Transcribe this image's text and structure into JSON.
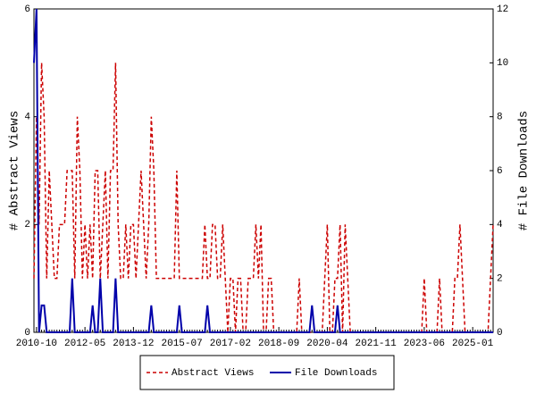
{
  "chart_data": {
    "type": "line",
    "ylabel": "# Abstract Views",
    "y2label": "# File Downloads",
    "categories": [
      null,
      "2010-10",
      null,
      null,
      null,
      null,
      null,
      null,
      null,
      null,
      null,
      null,
      null,
      null,
      null,
      null,
      null,
      null,
      null,
      null,
      "2012-05",
      null,
      null,
      null,
      null,
      null,
      null,
      null,
      null,
      null,
      null,
      null,
      null,
      null,
      null,
      null,
      null,
      null,
      null,
      "2013-12",
      null,
      null,
      null,
      null,
      null,
      null,
      null,
      null,
      null,
      null,
      null,
      null,
      null,
      null,
      null,
      null,
      null,
      null,
      "2015-07",
      null,
      null,
      null,
      null,
      null,
      null,
      null,
      null,
      null,
      null,
      null,
      null,
      null,
      null,
      null,
      null,
      null,
      null,
      "2017-02",
      null,
      null,
      null,
      null,
      null,
      null,
      null,
      null,
      null,
      null,
      null,
      null,
      null,
      null,
      null,
      null,
      null,
      null,
      "2018-09",
      null,
      null,
      null,
      null,
      null,
      null,
      null,
      null,
      null,
      null,
      null,
      null,
      null,
      null,
      null,
      null,
      null,
      null,
      "2020-04",
      null,
      null,
      null,
      null,
      null,
      null,
      null,
      null,
      null,
      null,
      null,
      null,
      null,
      null,
      null,
      null,
      null,
      null,
      "2021-11",
      null,
      null,
      null,
      null,
      null,
      null,
      null,
      null,
      null,
      null,
      null,
      null,
      null,
      null,
      null,
      null,
      null,
      null,
      "2023-06",
      null,
      null,
      null,
      null,
      null,
      null,
      null,
      null,
      null,
      null,
      null,
      null,
      null,
      null,
      null,
      null,
      null,
      null,
      "2025-01",
      null,
      null,
      null,
      null,
      null,
      null,
      null,
      null
    ],
    "series": [
      {
        "name": "Abstract Views",
        "color": "#cc0000",
        "dash": true,
        "values": [
          1,
          4,
          2,
          5,
          4,
          1,
          3,
          2,
          1,
          1,
          2,
          2,
          2,
          3,
          3,
          3,
          1,
          4,
          3,
          1,
          2,
          1,
          2,
          1,
          3,
          3,
          1,
          2,
          3,
          1,
          3,
          3,
          5,
          2,
          1,
          1,
          2,
          1,
          2,
          2,
          1,
          2,
          3,
          2,
          1,
          2,
          4,
          3,
          1,
          1,
          1,
          1,
          1,
          1,
          1,
          1,
          3,
          1,
          1,
          1,
          1,
          1,
          1,
          1,
          1,
          1,
          1,
          2,
          1,
          1,
          2,
          2,
          1,
          1,
          2,
          1,
          0,
          1,
          1,
          0,
          1,
          1,
          0,
          0,
          1,
          1,
          1,
          2,
          1,
          2,
          0,
          0,
          1,
          1,
          0,
          0,
          0,
          0,
          0,
          0,
          0,
          0,
          0,
          0,
          1,
          0,
          0,
          0,
          0,
          0,
          0,
          0,
          0,
          0,
          1,
          2,
          0,
          0,
          1,
          1,
          2,
          0,
          2,
          1,
          0,
          0,
          0,
          0,
          0,
          0,
          0,
          0,
          0,
          0,
          0,
          0,
          0,
          0,
          0,
          0,
          0,
          0,
          0,
          0,
          0,
          0,
          0,
          0,
          0,
          0,
          0,
          0,
          0,
          1,
          0,
          0,
          0,
          0,
          0,
          1,
          0,
          0,
          0,
          0,
          0,
          1,
          1,
          2,
          1,
          0,
          0,
          0,
          0,
          0,
          0,
          0,
          0,
          0,
          0,
          1,
          2
        ]
      },
      {
        "name": "File Downloads",
        "color": "#0000aa",
        "dash": false,
        "axis": "y2",
        "values": [
          10,
          12,
          0,
          1,
          1,
          0,
          0,
          0,
          0,
          0,
          0,
          0,
          0,
          0,
          0,
          2,
          0,
          0,
          0,
          0,
          0,
          0,
          0,
          1,
          0,
          0,
          2,
          0,
          0,
          0,
          0,
          0,
          2,
          0,
          0,
          0,
          0,
          0,
          0,
          0,
          0,
          0,
          0,
          0,
          0,
          0,
          1,
          0,
          0,
          0,
          0,
          0,
          0,
          0,
          0,
          0,
          0,
          1,
          0,
          0,
          0,
          0,
          0,
          0,
          0,
          0,
          0,
          0,
          1,
          0,
          0,
          0,
          0,
          0,
          0,
          0,
          0,
          0,
          0,
          0,
          0,
          0,
          0,
          0,
          0,
          0,
          0,
          0,
          0,
          0,
          0,
          0,
          0,
          0,
          0,
          0,
          0,
          0,
          0,
          0,
          0,
          0,
          0,
          0,
          0,
          0,
          0,
          0,
          0,
          1,
          0,
          0,
          0,
          0,
          0,
          0,
          0,
          0,
          0,
          1,
          0,
          0,
          0,
          0,
          0,
          0,
          0,
          0,
          0,
          0,
          0,
          0,
          0,
          0,
          0,
          0,
          0,
          0,
          0,
          0,
          0,
          0,
          0,
          0,
          0,
          0,
          0,
          0,
          0,
          0,
          0,
          0,
          0,
          0,
          0,
          0,
          0,
          0,
          0,
          0,
          0,
          0,
          0,
          0,
          0,
          0,
          0,
          0,
          0,
          0,
          0,
          0,
          0,
          0,
          0,
          0,
          0,
          0,
          0,
          0,
          0
        ]
      }
    ],
    "ylim": [
      0,
      6
    ],
    "yticks": [
      0,
      2,
      4,
      6
    ],
    "y2lim": [
      0,
      12
    ],
    "y2ticks": [
      0,
      2,
      4,
      6,
      8,
      10,
      12
    ],
    "legend": "bottom"
  }
}
